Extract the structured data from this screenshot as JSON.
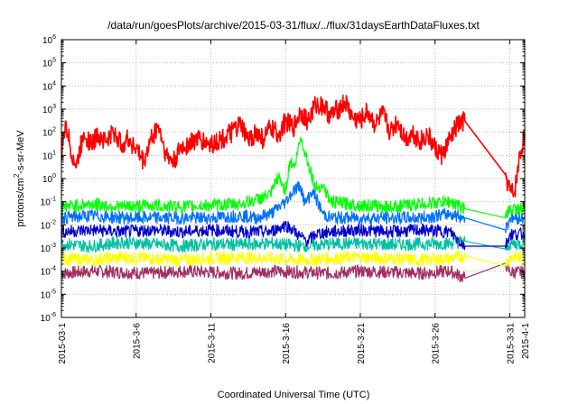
{
  "chart_data": {
    "type": "line",
    "title": "/data/run/goesPlots/archive/2015-03-31/flux/../flux/31daysEarthDataFluxes.txt",
    "xlabel": "Coordinated Universal Time (UTC)",
    "ylabel": "protons/cm2-s-sr-MeV",
    "ylabel_base": "protons/cm",
    "ylabel_sup": "2",
    "ylabel_rest": "-s-sr-MeV",
    "yscale": "log",
    "ylim": [
      1e-06,
      1000000.0
    ],
    "xlim": [
      0,
      31
    ],
    "grid": true,
    "y_ticks": [
      {
        "base": "10",
        "exp": "6",
        "value": 6
      },
      {
        "base": "10",
        "exp": "5",
        "value": 5
      },
      {
        "base": "10",
        "exp": "4",
        "value": 4
      },
      {
        "base": "10",
        "exp": "3",
        "value": 3
      },
      {
        "base": "10",
        "exp": "2",
        "value": 2
      },
      {
        "base": "10",
        "exp": "1",
        "value": 1
      },
      {
        "base": "10",
        "exp": "0",
        "value": 0
      },
      {
        "base": "10",
        "exp": "-1",
        "value": -1
      },
      {
        "base": "10",
        "exp": "-2",
        "value": -2
      },
      {
        "base": "10",
        "exp": "-3",
        "value": -3
      },
      {
        "base": "10",
        "exp": "-4",
        "value": -4
      },
      {
        "base": "10",
        "exp": "-5",
        "value": -5
      },
      {
        "base": "10",
        "exp": "-6",
        "value": -6
      }
    ],
    "x_ticks": [
      {
        "label": "2015-03-1",
        "day": 0
      },
      {
        "label": "2015-3-6",
        "day": 5
      },
      {
        "label": "2015-3-11",
        "day": 10
      },
      {
        "label": "2015-3-16",
        "day": 15
      },
      {
        "label": "2015-3-21",
        "day": 20
      },
      {
        "label": "2015-3-26",
        "day": 25
      },
      {
        "label": "2015-3-31",
        "day": 30
      },
      {
        "label": "2015-4-1",
        "day": 31
      }
    ],
    "series": [
      {
        "color": "#ff0000",
        "x": [
          0,
          0.3,
          0.6,
          1.0,
          1.5,
          2.0,
          2.5,
          3.0,
          3.5,
          4.0,
          4.5,
          5.0,
          5.5,
          6.0,
          6.5,
          7.0,
          7.5,
          8.0,
          9.0,
          10.0,
          11.0,
          12.0,
          12.5,
          13.0,
          13.5,
          14.0,
          14.5,
          15.0,
          15.5,
          16.0,
          16.5,
          17.0,
          17.5,
          18.0,
          18.5,
          19.0,
          19.5,
          20.0,
          20.5,
          21.0,
          21.5,
          22.0,
          22.5,
          23.0,
          23.5,
          24.0,
          24.5,
          25.0,
          25.5,
          26.0,
          26.5,
          27.0,
          29.7,
          30.0,
          30.3,
          30.6,
          31.0
        ],
        "y": [
          10,
          300,
          20,
          3,
          100,
          30,
          80,
          40,
          100,
          30,
          50,
          20,
          5,
          50,
          200,
          10,
          5,
          20,
          50,
          30,
          60,
          200,
          40,
          100,
          50,
          150,
          80,
          300,
          150,
          800,
          300,
          1500,
          1500,
          500,
          1000,
          2000,
          400,
          300,
          800,
          200,
          600,
          100,
          300,
          50,
          100,
          40,
          80,
          20,
          10,
          50,
          200,
          300,
          1.5,
          0.3,
          0.2,
          5,
          80
        ]
      },
      {
        "color": "#00ff00",
        "x": [
          0,
          2,
          4,
          6,
          8,
          10,
          12,
          13,
          14,
          14.5,
          15,
          15.3,
          15.6,
          16.0,
          16.5,
          17.0,
          17.5,
          18,
          20,
          22,
          24,
          26,
          27,
          29.7,
          30,
          31
        ],
        "y": [
          0.06,
          0.08,
          0.06,
          0.07,
          0.06,
          0.07,
          0.08,
          0.12,
          0.2,
          1.2,
          0.3,
          6,
          3,
          60,
          5,
          0.4,
          0.5,
          0.1,
          0.07,
          0.06,
          0.08,
          0.1,
          0.05,
          0.02,
          0.05,
          0.05
        ]
      },
      {
        "color": "#0070ff",
        "x": [
          0,
          2,
          4,
          6,
          8,
          10,
          12,
          13,
          14,
          15,
          15.5,
          16,
          16.3,
          16.8,
          17.5,
          18,
          20,
          22,
          24,
          26,
          27,
          29.7,
          30,
          31
        ],
        "y": [
          0.02,
          0.025,
          0.02,
          0.02,
          0.02,
          0.02,
          0.025,
          0.02,
          0.03,
          0.1,
          0.3,
          0.5,
          0.08,
          0.3,
          0.03,
          0.02,
          0.02,
          0.02,
          0.02,
          0.03,
          0.02,
          0.006,
          0.02,
          0.02
        ]
      },
      {
        "color": "#0000cc",
        "x": [
          0,
          2,
          4,
          6,
          8,
          10,
          12,
          14,
          15,
          15.5,
          16,
          16.5,
          17,
          18,
          20,
          22,
          24,
          26,
          27,
          29.7,
          30,
          31
        ],
        "y": [
          0.005,
          0.006,
          0.005,
          0.006,
          0.005,
          0.006,
          0.005,
          0.005,
          0.01,
          0.006,
          0.003,
          0.002,
          0.004,
          0.005,
          0.006,
          0.005,
          0.006,
          0.005,
          0.0012,
          0.0012,
          0.004,
          0.004
        ]
      },
      {
        "color": "#00c0a0",
        "x": [
          0,
          2,
          4,
          6,
          8,
          10,
          12,
          14,
          16,
          18,
          20,
          22,
          24,
          26,
          27,
          29.7,
          30,
          31
        ],
        "y": [
          0.0015,
          0.0012,
          0.0018,
          0.0015,
          0.0012,
          0.0015,
          0.0014,
          0.0016,
          0.0012,
          0.0015,
          0.0016,
          0.0014,
          0.0015,
          0.0016,
          0.002,
          0.0009,
          0.0015,
          0.0015
        ]
      },
      {
        "color": "#ffff00",
        "x": [
          0,
          2,
          4,
          6,
          8,
          10,
          12,
          14,
          16,
          18,
          20,
          22,
          24,
          26,
          27,
          29.7,
          30,
          31
        ],
        "y": [
          0.00035,
          0.0003,
          0.0004,
          0.00035,
          0.0003,
          0.00035,
          0.0004,
          0.00035,
          0.0003,
          0.00035,
          0.0004,
          0.00035,
          0.0003,
          0.00035,
          0.00045,
          0.00017,
          0.0004,
          0.0004
        ]
      },
      {
        "color": "#a03060",
        "x": [
          0,
          2,
          4,
          6,
          8,
          10,
          12,
          14,
          16,
          18,
          20,
          22,
          24,
          26,
          27,
          29.7,
          30,
          31
        ],
        "y": [
          8e-05,
          0.0001,
          9e-05,
          8e-05,
          0.0001,
          9e-05,
          8e-05,
          0.0001,
          9e-05,
          8e-05,
          0.0001,
          9e-05,
          8e-05,
          0.0001,
          5e-05,
          0.00022,
          9e-05,
          9e-05
        ]
      }
    ]
  }
}
